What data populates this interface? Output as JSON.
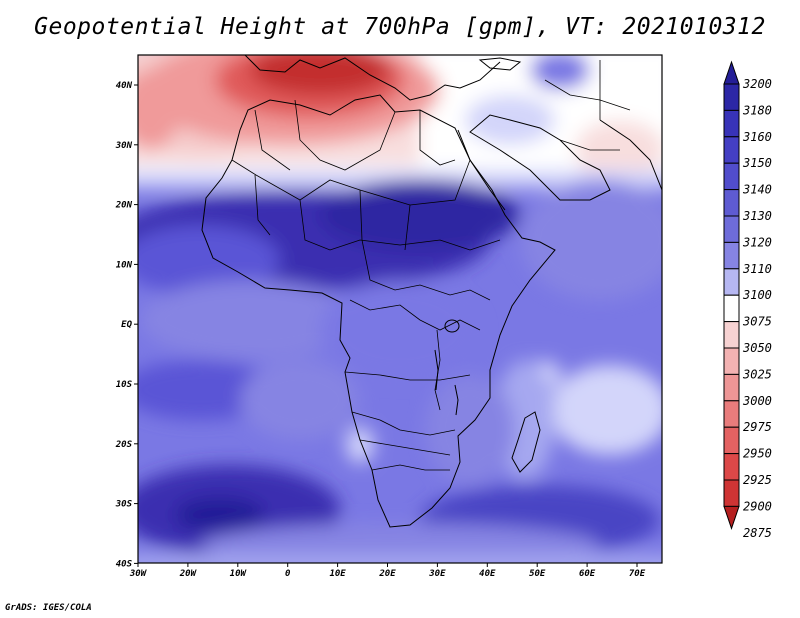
{
  "title": "Geopotential Height at 700hPa [gpm], VT: 2021010312",
  "credit": "GrADS: IGES/COLA",
  "map": {
    "lon_range": [
      -30,
      75
    ],
    "lat_range": [
      -40,
      45
    ],
    "x_ticks": [
      "30W",
      "20W",
      "10W",
      "0",
      "10E",
      "20E",
      "30E",
      "40E",
      "50E",
      "60E",
      "70E"
    ],
    "y_ticks": [
      "40N",
      "30N",
      "20N",
      "10N",
      "EQ",
      "10S",
      "20S",
      "30S",
      "40S"
    ],
    "colors": {
      "deep_blue": "#3a2fb0",
      "blue": "#5a55d6",
      "mid_blue": "#7a78e4",
      "light_blue": "#a6a8f0",
      "pale_blue": "#d3d5fa",
      "white": "#ffffff",
      "pink": "#f5cccc",
      "salmon": "#f09a9a",
      "red": "#e05a5a",
      "dark_red": "#c32e2e"
    }
  },
  "colorbar": {
    "levels": [
      "3200",
      "3180",
      "3160",
      "3150",
      "3140",
      "3130",
      "3120",
      "3110",
      "3100",
      "3075",
      "3050",
      "3025",
      "3000",
      "2975",
      "2950",
      "2925",
      "2900",
      "2875"
    ],
    "colors": [
      "#241e97",
      "#2c27a6",
      "#3833b8",
      "#443fc4",
      "#514dcc",
      "#5e5bd2",
      "#6e6cda",
      "#8684e3",
      "#b6b7f2",
      "#ffffff",
      "#f7d2d2",
      "#f3b2b2",
      "#ee9696",
      "#e97c7c",
      "#e46262",
      "#dc4848",
      "#cf3434",
      "#b51f1f"
    ]
  }
}
